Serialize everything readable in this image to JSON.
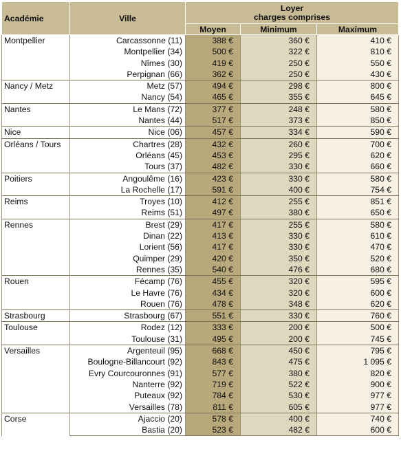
{
  "table": {
    "headers": {
      "academie": "Académie",
      "ville": "Ville",
      "loyer_line1": "Loyer",
      "loyer_line2": "charges comprises",
      "moyen": "Moyen",
      "minimum": "Minimum",
      "maximum": "Maximum"
    },
    "groups": [
      {
        "academie": "Montpellier",
        "rows": [
          [
            "Carcassonne (11)",
            "388 €",
            "360 €",
            "410 €"
          ],
          [
            "Montpellier (34)",
            "500 €",
            "322 €",
            "810 €"
          ],
          [
            "Nîmes (30)",
            "419 €",
            "250 €",
            "550 €"
          ],
          [
            "Perpignan (66)",
            "362 €",
            "250 €",
            "430 €"
          ]
        ]
      },
      {
        "academie": "Nancy / Metz",
        "rows": [
          [
            "Metz (57)",
            "494 €",
            "298 €",
            "800 €"
          ],
          [
            "Nancy (54)",
            "465 €",
            "355 €",
            "645 €"
          ]
        ]
      },
      {
        "academie": "Nantes",
        "rows": [
          [
            "Le Mans (72)",
            "377 €",
            "248 €",
            "580 €"
          ],
          [
            "Nantes (44)",
            "517 €",
            "373 €",
            "850 €"
          ]
        ]
      },
      {
        "academie": "Nice",
        "rows": [
          [
            "Nice (06)",
            "457 €",
            "334 €",
            "590 €"
          ]
        ]
      },
      {
        "academie": "Orléans / Tours",
        "rows": [
          [
            "Chartres (28)",
            "432 €",
            "260 €",
            "700 €"
          ],
          [
            "Orléans (45)",
            "453 €",
            "295 €",
            "620 €"
          ],
          [
            "Tours (37)",
            "482 €",
            "330 €",
            "660 €"
          ]
        ]
      },
      {
        "academie": "Poitiers",
        "rows": [
          [
            "Angoulême (16)",
            "423 €",
            "330 €",
            "580 €"
          ],
          [
            "La Rochelle (17)",
            "591 €",
            "400 €",
            "754 €"
          ]
        ]
      },
      {
        "academie": "Reims",
        "rows": [
          [
            "Troyes (10)",
            "412 €",
            "255 €",
            "851 €"
          ],
          [
            "Reims (51)",
            "497 €",
            "380 €",
            "650 €"
          ]
        ]
      },
      {
        "academie": "Rennes",
        "rows": [
          [
            "Brest (29)",
            "417 €",
            "255 €",
            "580 €"
          ],
          [
            "Dinan (22)",
            "413 €",
            "330 €",
            "610 €"
          ],
          [
            "Lorient (56)",
            "417 €",
            "330 €",
            "470 €"
          ],
          [
            "Quimper (29)",
            "420 €",
            "350 €",
            "520 €"
          ],
          [
            "Rennes (35)",
            "540 €",
            "476 €",
            "680 €"
          ]
        ]
      },
      {
        "academie": "Rouen",
        "rows": [
          [
            "Fécamp (76)",
            "455 €",
            "320 €",
            "595 €"
          ],
          [
            "Le Havre (76)",
            "434 €",
            "320 €",
            "600 €"
          ],
          [
            "Rouen (76)",
            "478 €",
            "348 €",
            "620 €"
          ]
        ]
      },
      {
        "academie": "Strasbourg",
        "rows": [
          [
            "Strasbourg (67)",
            "551 €",
            "330 €",
            "760 €"
          ]
        ]
      },
      {
        "academie": "Toulouse",
        "rows": [
          [
            "Rodez (12)",
            "333 €",
            "200 €",
            "500 €"
          ],
          [
            "Toulouse (31)",
            "495 €",
            "200 €",
            "745 €"
          ]
        ]
      },
      {
        "academie": "Versailles",
        "rows": [
          [
            "Argenteuil (95)",
            "668 €",
            "450 €",
            "795 €"
          ],
          [
            "Boulogne-Billancourt (92)",
            "843 €",
            "475 €",
            "1 095 €"
          ],
          [
            "Evry Courcouronnes (91)",
            "577 €",
            "380 €",
            "820 €"
          ],
          [
            "Nanterre (92)",
            "719 €",
            "522 €",
            "900 €"
          ],
          [
            "Puteaux (92)",
            "784 €",
            "530 €",
            "977 €"
          ],
          [
            "Versailles (78)",
            "811 €",
            "605 €",
            "977 €"
          ]
        ]
      },
      {
        "academie": "Corse",
        "rows": [
          [
            "Ajaccio (20)",
            "578 €",
            "400 €",
            "740 €"
          ],
          [
            "Bastia (20)",
            "523 €",
            "482 €",
            "600 €"
          ]
        ]
      }
    ]
  }
}
